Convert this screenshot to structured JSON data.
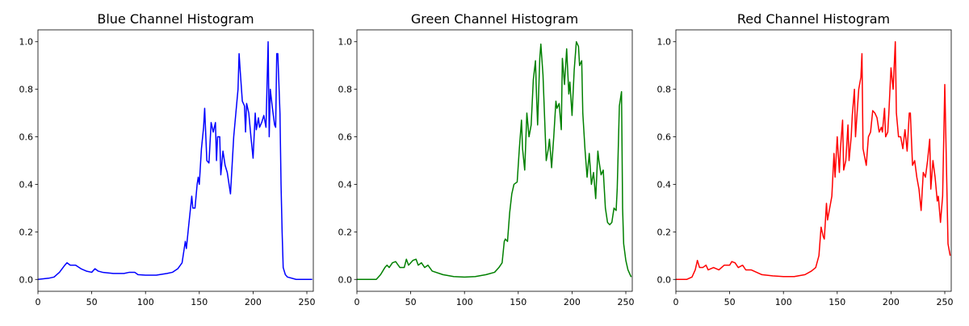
{
  "chart_data": [
    {
      "type": "line",
      "title": "Blue Channel Histogram",
      "color": "#0000ff",
      "x": [
        0,
        10,
        15,
        20,
        25,
        27,
        30,
        35,
        40,
        45,
        50,
        53,
        56,
        60,
        70,
        80,
        85,
        90,
        93,
        100,
        110,
        120,
        125,
        130,
        134,
        137,
        138,
        140,
        143,
        144,
        146,
        148,
        149,
        150,
        152,
        154,
        155,
        157,
        159,
        161,
        163,
        165,
        166,
        167,
        169,
        170,
        172,
        174,
        176,
        179,
        182,
        184,
        186,
        187,
        188,
        190,
        192,
        193,
        194,
        196,
        198,
        200,
        202,
        203,
        205,
        206,
        208,
        210,
        212,
        214,
        215,
        216,
        218,
        220,
        221,
        222,
        223,
        225,
        226,
        227,
        228,
        230,
        232,
        240,
        255
      ],
      "values": [
        0,
        0.005,
        0.01,
        0.03,
        0.06,
        0.07,
        0.06,
        0.06,
        0.045,
        0.035,
        0.03,
        0.045,
        0.035,
        0.03,
        0.025,
        0.025,
        0.03,
        0.03,
        0.02,
        0.018,
        0.018,
        0.025,
        0.03,
        0.045,
        0.07,
        0.16,
        0.13,
        0.22,
        0.35,
        0.3,
        0.3,
        0.4,
        0.43,
        0.4,
        0.55,
        0.64,
        0.72,
        0.5,
        0.49,
        0.66,
        0.62,
        0.66,
        0.5,
        0.6,
        0.6,
        0.44,
        0.54,
        0.48,
        0.45,
        0.36,
        0.6,
        0.7,
        0.8,
        0.95,
        0.88,
        0.75,
        0.73,
        0.62,
        0.74,
        0.7,
        0.6,
        0.51,
        0.7,
        0.63,
        0.68,
        0.64,
        0.66,
        0.69,
        0.64,
        1.0,
        0.6,
        0.8,
        0.72,
        0.65,
        0.64,
        0.95,
        0.95,
        0.7,
        0.4,
        0.2,
        0.05,
        0.02,
        0.01,
        0,
        0
      ],
      "xlim": [
        0,
        256
      ],
      "ylim": [
        -0.05,
        1.05
      ],
      "xticks": [
        0,
        50,
        100,
        150,
        200,
        250
      ],
      "yticks": [
        {
          "value": 0,
          "label": "0.0"
        },
        0.2,
        0.4,
        0.6,
        0.8,
        {
          "value": 1,
          "label": "1.0"
        }
      ]
    },
    {
      "type": "line",
      "title": "Green Channel Histogram",
      "color": "#008000",
      "x": [
        0,
        10,
        18,
        22,
        26,
        28,
        30,
        33,
        36,
        40,
        44,
        46,
        48,
        52,
        55,
        57,
        60,
        63,
        66,
        70,
        80,
        90,
        100,
        110,
        120,
        128,
        132,
        135,
        137,
        138,
        140,
        142,
        144,
        146,
        149,
        151,
        153,
        154,
        156,
        158,
        160,
        162,
        164,
        166,
        167,
        168,
        170,
        171,
        173,
        176,
        178,
        179,
        181,
        183,
        185,
        186,
        188,
        190,
        191,
        193,
        195,
        197,
        198,
        200,
        202,
        204,
        206,
        207,
        209,
        210,
        212,
        214,
        216,
        218,
        220,
        222,
        224,
        225,
        227,
        229,
        231,
        233,
        235,
        237,
        239,
        241,
        242,
        244,
        246,
        247,
        248,
        250,
        252,
        254,
        255
      ],
      "values": [
        0,
        0,
        0,
        0.02,
        0.05,
        0.06,
        0.05,
        0.07,
        0.075,
        0.05,
        0.05,
        0.085,
        0.06,
        0.08,
        0.085,
        0.06,
        0.07,
        0.05,
        0.06,
        0.035,
        0.02,
        0.012,
        0.01,
        0.012,
        0.02,
        0.03,
        0.05,
        0.07,
        0.16,
        0.17,
        0.16,
        0.28,
        0.36,
        0.4,
        0.41,
        0.55,
        0.67,
        0.55,
        0.46,
        0.7,
        0.6,
        0.65,
        0.84,
        0.92,
        0.77,
        0.65,
        0.93,
        0.99,
        0.86,
        0.5,
        0.55,
        0.59,
        0.47,
        0.6,
        0.75,
        0.72,
        0.74,
        0.63,
        0.93,
        0.82,
        0.97,
        0.78,
        0.83,
        0.69,
        0.88,
        1.0,
        0.98,
        0.9,
        0.92,
        0.7,
        0.55,
        0.43,
        0.53,
        0.4,
        0.45,
        0.34,
        0.54,
        0.5,
        0.44,
        0.46,
        0.3,
        0.24,
        0.23,
        0.24,
        0.3,
        0.29,
        0.38,
        0.73,
        0.79,
        0.3,
        0.15,
        0.08,
        0.04,
        0.02,
        0.01
      ],
      "xlim": [
        0,
        256
      ],
      "ylim": [
        -0.05,
        1.05
      ],
      "xticks": [
        0,
        50,
        100,
        150,
        200,
        250
      ],
      "yticks": [
        {
          "value": 0,
          "label": "0.0"
        },
        0.2,
        0.4,
        0.6,
        0.8,
        {
          "value": 1,
          "label": "1.0"
        }
      ]
    },
    {
      "type": "line",
      "title": "Red Channel Histogram",
      "color": "#ff0000",
      "x": [
        0,
        10,
        15,
        18,
        20,
        22,
        25,
        28,
        30,
        35,
        40,
        45,
        50,
        52,
        55,
        58,
        62,
        65,
        70,
        75,
        80,
        90,
        100,
        110,
        120,
        126,
        130,
        133,
        135,
        137,
        138,
        140,
        141,
        143,
        145,
        147,
        148,
        150,
        152,
        153,
        155,
        156,
        158,
        160,
        161,
        163,
        164,
        166,
        167,
        170,
        172,
        173,
        174,
        177,
        179,
        181,
        183,
        185,
        187,
        189,
        191,
        192,
        194,
        195,
        197,
        198,
        200,
        202,
        204,
        205,
        207,
        209,
        211,
        213,
        215,
        217,
        218,
        220,
        222,
        224,
        226,
        228,
        230,
        232,
        234,
        236,
        237,
        239,
        241,
        243,
        244,
        246,
        248,
        250,
        251,
        253,
        255
      ],
      "values": [
        0,
        0,
        0.01,
        0.04,
        0.08,
        0.05,
        0.05,
        0.06,
        0.04,
        0.05,
        0.04,
        0.06,
        0.06,
        0.075,
        0.07,
        0.05,
        0.06,
        0.04,
        0.04,
        0.03,
        0.02,
        0.015,
        0.012,
        0.012,
        0.02,
        0.035,
        0.05,
        0.1,
        0.22,
        0.18,
        0.17,
        0.32,
        0.25,
        0.3,
        0.35,
        0.53,
        0.43,
        0.6,
        0.45,
        0.55,
        0.67,
        0.46,
        0.5,
        0.65,
        0.5,
        0.6,
        0.69,
        0.8,
        0.6,
        0.8,
        0.85,
        0.95,
        0.55,
        0.48,
        0.6,
        0.62,
        0.71,
        0.7,
        0.68,
        0.62,
        0.64,
        0.62,
        0.72,
        0.6,
        0.62,
        0.7,
        0.89,
        0.8,
        1.0,
        0.7,
        0.6,
        0.6,
        0.55,
        0.63,
        0.54,
        0.7,
        0.7,
        0.48,
        0.5,
        0.43,
        0.38,
        0.29,
        0.45,
        0.43,
        0.5,
        0.59,
        0.38,
        0.5,
        0.43,
        0.33,
        0.35,
        0.24,
        0.35,
        0.82,
        0.6,
        0.15,
        0.1
      ],
      "xlim": [
        0,
        256
      ],
      "ylim": [
        -0.05,
        1.05
      ],
      "xticks": [
        0,
        50,
        100,
        150,
        200,
        250
      ],
      "yticks": [
        {
          "value": 0,
          "label": "0.0"
        },
        0.2,
        0.4,
        0.6,
        0.8,
        {
          "value": 1,
          "label": "1.0"
        }
      ]
    }
  ]
}
